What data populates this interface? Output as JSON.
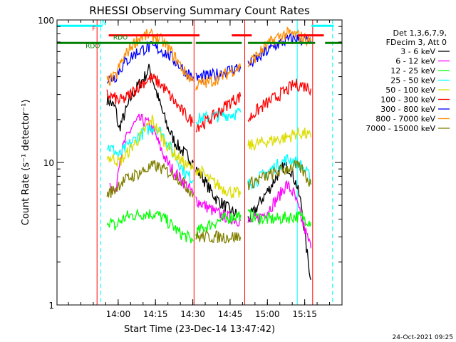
{
  "chart_data": {
    "type": "line",
    "title": "RHESSI Observing Summary Count Rates",
    "xlabel": "Start Time (23-Dec-14 13:47:42)",
    "ylabel": "Count Rate (s⁻¹ detector⁻¹)",
    "yscale": "log",
    "ylim": [
      1,
      100
    ],
    "xlim_min": [
      -12.3,
      102.3
    ],
    "x_ticks": [
      {
        "t": 12.3,
        "label": "14:00"
      },
      {
        "t": 27.3,
        "label": "14:15"
      },
      {
        "t": 42.3,
        "label": "14:30"
      },
      {
        "t": 57.3,
        "label": "14:45"
      },
      {
        "t": 72.3,
        "label": "15:00"
      },
      {
        "t": 87.3,
        "label": "15:15"
      }
    ],
    "y_ticks": [
      {
        "v": 1,
        "label": "1"
      },
      {
        "v": 10,
        "label": "10"
      },
      {
        "v": 100,
        "label": "100"
      }
    ],
    "legend": {
      "header": [
        "Det 1,3,6,7,9,",
        "FDecim 3, Att 0"
      ],
      "entries": [
        {
          "label": "3 - 6 keV",
          "color": "#000000"
        },
        {
          "label": "6 - 12 keV",
          "color": "#ff00ff"
        },
        {
          "label": "12 - 25 keV",
          "color": "#00ff00"
        },
        {
          "label": "25 - 50 keV",
          "color": "#00ffff"
        },
        {
          "label": "50 - 100 keV",
          "color": "#dddd00"
        },
        {
          "label": "100 - 300 keV",
          "color": "#ff0000"
        },
        {
          "label": "300 - 800 keV",
          "color": "#0000ff"
        },
        {
          "label": "800 - 7000 keV",
          "color": "#ff8c00"
        },
        {
          "label": "7000 - 15000 keV",
          "color": "#808000"
        }
      ]
    },
    "series": [
      {
        "name": "3 - 6 keV",
        "color": "#000000",
        "segments": [
          {
            "x": [
              7.8,
              11.3,
              12.5,
              15,
              18,
              20.5,
              23,
              25,
              27,
              29,
              32,
              35,
              38,
              40.5,
              42.5
            ],
            "y": [
              28,
              24,
              17,
              22,
              30,
              35,
              40,
              46,
              34,
              26,
              18,
              14,
              12,
              11,
              10
            ]
          },
          {
            "x": [
              43.5,
              46,
              49,
              52,
              55,
              58,
              61.5
            ],
            "y": [
              9,
              8,
              6.5,
              5.5,
              5,
              4.5,
              4.2
            ]
          },
          {
            "x": [
              64.5,
              67,
              70,
              73,
              76,
              79,
              81.5,
              84,
              86,
              88,
              89.8
            ],
            "y": [
              4,
              4.5,
              5.5,
              6.5,
              8,
              9.5,
              9,
              7,
              5,
              2.5,
              1.5
            ]
          }
        ]
      },
      {
        "name": "6 - 12 keV",
        "color": "#ff00ff",
        "segments": [
          {
            "x": [
              9,
              11.3,
              12.5,
              15,
              18,
              21,
              24,
              27,
              29,
              32,
              35,
              38,
              41,
              42.5
            ],
            "y": [
              7,
              6,
              10,
              14,
              18,
              20,
              19,
              16,
              13,
              10,
              8.5,
              7.5,
              6.5,
              6
            ]
          },
          {
            "x": [
              43.5,
              47,
              51,
              55,
              59,
              61.5
            ],
            "y": [
              5.5,
              5,
              4.5,
              4.2,
              4,
              3.9
            ]
          },
          {
            "x": [
              64.5,
              68,
              72,
              76,
              80,
              83,
              86,
              89.8
            ],
            "y": [
              3.8,
              4,
              4.5,
              5.5,
              7,
              6,
              4,
              2.5
            ]
          }
        ]
      },
      {
        "name": "12 - 25 keV",
        "color": "#00ff00",
        "segments": [
          {
            "x": [
              7.8,
              11.3,
              12.5,
              16,
              20,
              24,
              28,
              31,
              34,
              37,
              40,
              42.5
            ],
            "y": [
              4,
              3.5,
              3.8,
              4.2,
              4.3,
              4.4,
              4.3,
              4,
              3.6,
              3.2,
              3,
              2.8
            ]
          },
          {
            "x": [
              43.5,
              47,
              51,
              55,
              59,
              61.5
            ],
            "y": [
              3.2,
              3.5,
              3.8,
              4,
              4.2,
              4.3
            ]
          },
          {
            "x": [
              64.5,
              68,
              72,
              76,
              80,
              84,
              88,
              89.8
            ],
            "y": [
              4.3,
              4.1,
              4,
              4,
              4.1,
              4.2,
              4,
              3.8
            ]
          }
        ]
      },
      {
        "name": "25 - 50 keV",
        "color": "#00ffff",
        "segments": [
          {
            "x": [
              7.8,
              11.3,
              12.5,
              15,
              18,
              21,
              24,
              27,
              30,
              33,
              36,
              39,
              42.5
            ],
            "y": [
              13,
              12,
              11,
              12.5,
              14,
              15.5,
              17,
              18,
              16,
              13,
              10.5,
              8.5,
              7.5
            ]
          },
          {
            "x": [
              43.5,
              47,
              51,
              55,
              59,
              61.5
            ],
            "y": [
              20,
              20.5,
              21,
              21.5,
              22,
              22.5
            ]
          },
          {
            "x": [
              64.5,
              68,
              72,
              76,
              80,
              82,
              84,
              86,
              88,
              89.8
            ],
            "y": [
              7,
              7.5,
              8.5,
              9.5,
              10.5,
              10.5,
              10,
              9.5,
              8.5,
              7.5
            ]
          }
        ]
      },
      {
        "name": "50 - 100 keV",
        "color": "#dddd00",
        "segments": [
          {
            "x": [
              7.8,
              11.3,
              12.5,
              15,
              18,
              21,
              24,
              26,
              28,
              31,
              34,
              37,
              40,
              42.5
            ],
            "y": [
              11,
              10.5,
              10,
              11,
              13,
              15,
              18,
              20,
              17,
              14,
              12,
              10.5,
              9.5,
              9
            ]
          },
          {
            "x": [
              43.5,
              46,
              49,
              52,
              55,
              58,
              61.5
            ],
            "y": [
              9,
              8.5,
              7.5,
              7,
              6.5,
              6.2,
              6
            ]
          },
          {
            "x": [
              64.5,
              68,
              72,
              76,
              80,
              84,
              87,
              89.8
            ],
            "y": [
              13,
              13.5,
              14,
              14.5,
              15,
              16,
              16,
              15
            ]
          }
        ]
      },
      {
        "name": "100 - 300 keV",
        "color": "#ff0000",
        "segments": [
          {
            "x": [
              7.8,
              11.3,
              12.5,
              15,
              18,
              21,
              24,
              26,
              28,
              31,
              34,
              37,
              40,
              42.5
            ],
            "y": [
              30,
              28,
              27,
              28,
              31,
              35,
              38,
              39,
              37,
              33,
              28,
              24,
              21,
              19
            ]
          },
          {
            "x": [
              43.5,
              46,
              49,
              52,
              55,
              58,
              61.5
            ],
            "y": [
              18,
              18.5,
              20,
              22,
              24.5,
              27,
              29
            ]
          },
          {
            "x": [
              64.5,
              68,
              72,
              76,
              80,
              83,
              86,
              89.8
            ],
            "y": [
              20,
              23,
              26,
              29,
              32,
              35,
              35,
              33
            ]
          }
        ]
      },
      {
        "name": "300 - 800 keV",
        "color": "#0000ff",
        "segments": [
          {
            "x": [
              7.8,
              11.3,
              12.5,
              15,
              18,
              21,
              24,
              27,
              30,
              33,
              36,
              39,
              42.5
            ],
            "y": [
              38,
              40,
              44,
              50,
              56,
              61,
              64,
              64,
              61,
              56,
              50,
              44,
              40
            ]
          },
          {
            "x": [
              43.5,
              47,
              51,
              55,
              58,
              61.5
            ],
            "y": [
              39,
              40,
              41,
              43,
              45,
              47
            ]
          },
          {
            "x": [
              64.5,
              68,
              72,
              76,
              80,
              83,
              86,
              89.8
            ],
            "y": [
              48,
              53,
              60,
              67,
              72,
              74,
              73,
              69
            ]
          }
        ]
      },
      {
        "name": "800 - 7000 keV",
        "color": "#ff8c00",
        "segments": [
          {
            "x": [
              7.8,
              11.3,
              12.5,
              15,
              18,
              21,
              24,
              27,
              30,
              33,
              36,
              39,
              42.5
            ],
            "y": [
              37,
              40,
              46,
              56,
              67,
              75,
              78,
              77,
              71,
              62,
              52,
              43,
              37
            ]
          },
          {
            "x": [
              43.5,
              47,
              51,
              55,
              58,
              61.5
            ],
            "y": [
              35,
              36,
              38,
              41,
              44,
              47
            ]
          },
          {
            "x": [
              64.5,
              68,
              72,
              76,
              80,
              83,
              86,
              89.8
            ],
            "y": [
              49,
              56,
              66,
              75,
              80,
              79,
              76,
              71
            ]
          }
        ]
      },
      {
        "name": "7000 - 15000 keV",
        "color": "#808000",
        "segments": [
          {
            "x": [
              7.8,
              11.3,
              12.5,
              15,
              18,
              21,
              24,
              27,
              30,
              33,
              36,
              39,
              42.5
            ],
            "y": [
              6,
              6.5,
              7,
              7.5,
              8,
              8.5,
              9,
              9.5,
              9,
              8.5,
              8,
              7,
              6
            ]
          },
          {
            "x": [
              43.5,
              47,
              51,
              55,
              58,
              61.5
            ],
            "y": [
              3,
              3,
              3,
              3,
              3,
              3
            ]
          },
          {
            "x": [
              64.5,
              68,
              72,
              76,
              80,
              83,
              86,
              89.8
            ],
            "y": [
              7,
              7.5,
              8,
              8.5,
              9,
              9.5,
              9,
              7
            ]
          }
        ]
      }
    ],
    "flag_bars": [
      {
        "label": "N",
        "color": "#00ffff",
        "segments": [
          [
            -12.3,
            6
          ],
          [
            90,
            99
          ]
        ]
      },
      {
        "label": "F",
        "color": "#ff0000",
        "segments": [
          [
            8.5,
            45
          ],
          [
            58,
            66
          ],
          [
            84.5,
            95
          ]
        ]
      },
      {
        "label": "RDO",
        "color": "#008000",
        "segments": [
          [
            -12.3,
            42
          ],
          [
            43.5,
            62
          ],
          [
            64.5,
            91.5
          ],
          [
            95.5,
            102.3
          ]
        ]
      }
    ],
    "markers": [
      {
        "t": 3.8,
        "color": "#ff0000",
        "style": "solid"
      },
      {
        "t": 5.3,
        "color": "#00ffff",
        "style": "dashed"
      },
      {
        "t": 42.8,
        "color": "#ff0000",
        "style": "solid"
      },
      {
        "t": 63.2,
        "color": "#ff0000",
        "style": "solid"
      },
      {
        "t": 84.3,
        "color": "#00ffff",
        "style": "solid"
      },
      {
        "t": 90.5,
        "color": "#ff0000",
        "style": "solid"
      },
      {
        "t": 98.5,
        "color": "#00ffff",
        "style": "dashed"
      }
    ],
    "flag_labels": [
      {
        "text": "N",
        "t": 5.7,
        "v": 92,
        "color": "#00ffff"
      },
      {
        "text": "F",
        "t": 1.8,
        "v": 84,
        "color": "#ff0000"
      },
      {
        "text": "RDO",
        "t": 10.3,
        "v": 73,
        "color": "#008000"
      },
      {
        "text": "RDO",
        "t": -0.8,
        "v": 63.5,
        "color": "#008000"
      }
    ],
    "footer": "24-Oct-2021 09:25"
  }
}
